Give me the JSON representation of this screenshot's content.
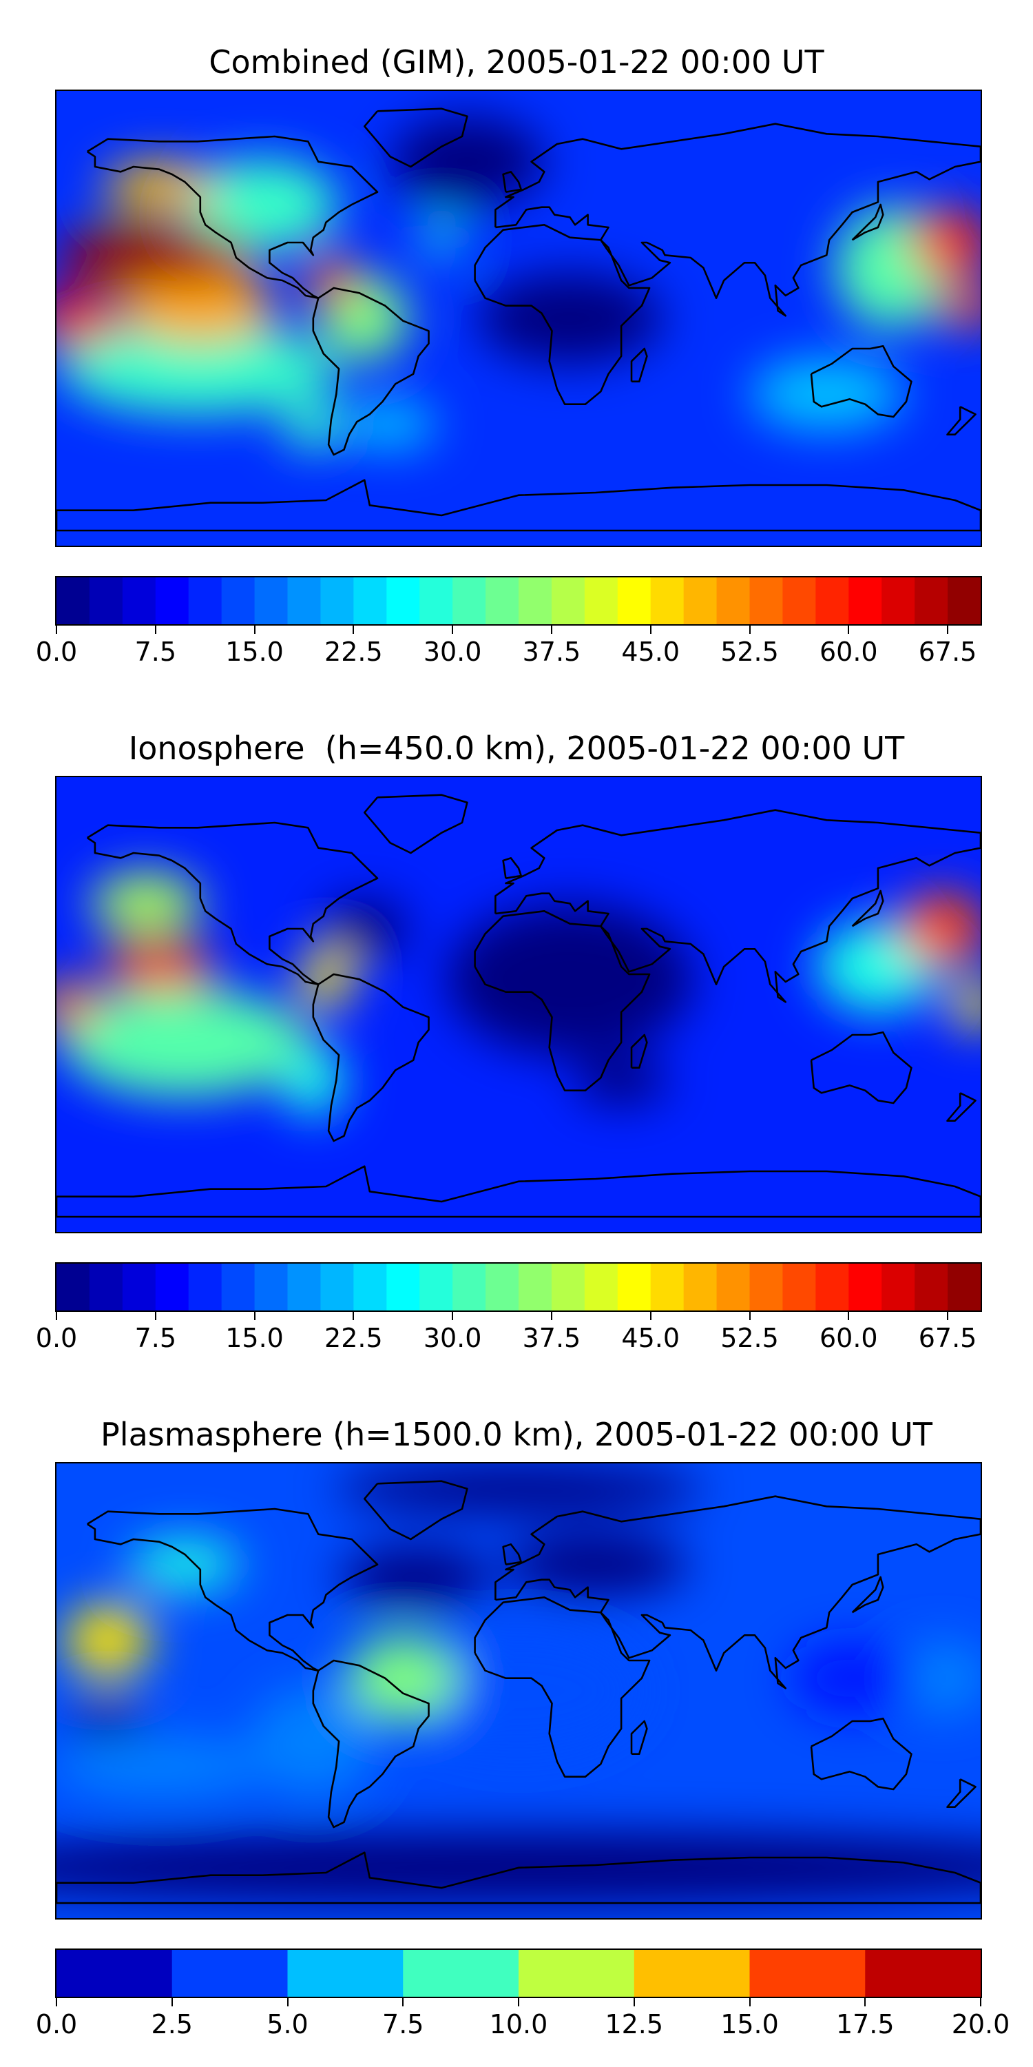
{
  "chart_data": [
    {
      "type": "heatmap",
      "title": "Combined (GIM), 2005-01-22 00:00 UT",
      "xlabel": "",
      "ylabel": "",
      "grid": false,
      "colorbar": {
        "min": 0,
        "max": 70,
        "step": 2.5,
        "ticks": [
          0.0,
          7.5,
          15.0,
          22.5,
          30.0,
          37.5,
          45.0,
          52.5,
          60.0,
          67.5
        ],
        "tick_labels": [
          "0.0",
          "7.5",
          "15.0",
          "22.5",
          "30.0",
          "37.5",
          "45.0",
          "52.5",
          "60.0",
          "67.5"
        ]
      },
      "background_value": 12,
      "features": [
        {
          "lon": -142,
          "lat": 25,
          "value": 68,
          "sx": 32,
          "sy": 10
        },
        {
          "lon": -172,
          "lat": 0,
          "value": 62,
          "sx": 14,
          "sy": 9
        },
        {
          "lon": -73,
          "lat": 15,
          "value": 57,
          "sx": 8,
          "sy": 8
        },
        {
          "lon": -140,
          "lat": 52,
          "value": 48,
          "sx": 18,
          "sy": 8
        },
        {
          "lon": -125,
          "lat": 5,
          "value": 50,
          "sx": 25,
          "sy": 12
        },
        {
          "lon": -60,
          "lat": 0,
          "value": 35,
          "sx": 14,
          "sy": 14
        },
        {
          "lon": -125,
          "lat": -20,
          "value": 30,
          "sx": 45,
          "sy": 15
        },
        {
          "lon": -100,
          "lat": 45,
          "value": 30,
          "sx": 25,
          "sy": 15
        },
        {
          "lon": 168,
          "lat": 30,
          "value": 58,
          "sx": 13,
          "sy": 11
        },
        {
          "lon": 175,
          "lat": 5,
          "value": 56,
          "sx": 10,
          "sy": 7
        },
        {
          "lon": 145,
          "lat": 20,
          "value": 32,
          "sx": 18,
          "sy": 20
        },
        {
          "lon": -30,
          "lat": 32,
          "value": 28,
          "sx": 6,
          "sy": 6
        },
        {
          "lon": 120,
          "lat": -30,
          "value": 22,
          "sx": 25,
          "sy": 12
        },
        {
          "lon": -20,
          "lat": 62,
          "value": -10,
          "sx": 25,
          "sy": 15
        },
        {
          "lon": 20,
          "lat": 0,
          "value": -3,
          "sx": 30,
          "sy": 15
        },
        {
          "lon": -80,
          "lat": -42,
          "value": 30,
          "sx": 10,
          "sy": 8
        },
        {
          "lon": -50,
          "lat": -42,
          "value": 22,
          "sx": 15,
          "sy": 8
        }
      ]
    },
    {
      "type": "heatmap",
      "title": "Ionosphere  (h=450.0 km), 2005-01-22 00:00 UT",
      "xlabel": "",
      "ylabel": "",
      "grid": false,
      "colorbar": {
        "min": 0,
        "max": 70,
        "step": 2.5,
        "ticks": [
          0.0,
          7.5,
          15.0,
          22.5,
          30.0,
          37.5,
          45.0,
          52.5,
          60.0,
          67.5
        ],
        "tick_labels": [
          "0.0",
          "7.5",
          "15.0",
          "22.5",
          "30.0",
          "37.5",
          "45.0",
          "52.5",
          "60.0",
          "67.5"
        ]
      },
      "background_value": 11,
      "features": [
        {
          "lon": -140,
          "lat": 15,
          "value": 57,
          "sx": 18,
          "sy": 8
        },
        {
          "lon": -175,
          "lat": 0,
          "value": 52,
          "sx": 10,
          "sy": 8
        },
        {
          "lon": -145,
          "lat": 40,
          "value": 38,
          "sx": 18,
          "sy": 10
        },
        {
          "lon": -75,
          "lat": 10,
          "value": 45,
          "sx": 8,
          "sy": 10
        },
        {
          "lon": -130,
          "lat": -15,
          "value": 32,
          "sx": 40,
          "sy": 18
        },
        {
          "lon": -80,
          "lat": -30,
          "value": 28,
          "sx": 10,
          "sy": 12
        },
        {
          "lon": 165,
          "lat": 30,
          "value": 56,
          "sx": 14,
          "sy": 12
        },
        {
          "lon": 178,
          "lat": 0,
          "value": 45,
          "sx": 8,
          "sy": 8
        },
        {
          "lon": 140,
          "lat": 15,
          "value": 28,
          "sx": 20,
          "sy": 15
        },
        {
          "lon": -60,
          "lat": 30,
          "value": -6,
          "sx": 14,
          "sy": 10
        },
        {
          "lon": 20,
          "lat": 10,
          "value": -4,
          "sx": 40,
          "sy": 25
        },
        {
          "lon": 40,
          "lat": -30,
          "value": -4,
          "sx": 15,
          "sy": 8
        }
      ]
    },
    {
      "type": "heatmap",
      "title": "Plasmasphere (h=1500.0 km), 2005-01-22 00:00 UT",
      "xlabel": "",
      "ylabel": "",
      "grid": false,
      "colorbar": {
        "min": 0,
        "max": 20,
        "step": 2.5,
        "ticks": [
          0.0,
          2.5,
          5.0,
          7.5,
          10.0,
          12.5,
          15.0,
          17.5,
          20.0
        ],
        "tick_labels": [
          "0.0",
          "2.5",
          "5.0",
          "7.5",
          "10.0",
          "12.5",
          "15.0",
          "17.5",
          "20.0"
        ]
      },
      "background_value": 4,
      "features": [
        {
          "lon": -160,
          "lat": 20,
          "value": 13,
          "sx": 14,
          "sy": 12
        },
        {
          "lon": -160,
          "lat": -10,
          "value": -3,
          "sx": 12,
          "sy": 6
        },
        {
          "lon": -130,
          "lat": 50,
          "value": 8,
          "sx": 18,
          "sy": 8
        },
        {
          "lon": -45,
          "lat": 5,
          "value": 10,
          "sx": 18,
          "sy": 14
        },
        {
          "lon": -80,
          "lat": -20,
          "value": 5,
          "sx": 20,
          "sy": 18
        },
        {
          "lon": -140,
          "lat": -30,
          "value": 5,
          "sx": 35,
          "sy": 10
        },
        {
          "lon": 0,
          "lat": 0,
          "value": 4,
          "sx": 40,
          "sy": 20
        },
        {
          "lon": 165,
          "lat": 5,
          "value": 5,
          "sx": 15,
          "sy": 12
        },
        {
          "lon": 130,
          "lat": 5,
          "value": 3,
          "sx": 20,
          "sy": 12
        },
        {
          "lon": -40,
          "lat": 45,
          "value": -3,
          "sx": 25,
          "sy": 10
        },
        {
          "lon": 30,
          "lat": 50,
          "value": -3,
          "sx": 30,
          "sy": 10
        },
        {
          "lon": 0,
          "lat": 80,
          "value": -4,
          "sx": 60,
          "sy": 8
        },
        {
          "lon": 0,
          "lat": -70,
          "value": -3,
          "sx": 200,
          "sy": 12
        }
      ]
    }
  ]
}
